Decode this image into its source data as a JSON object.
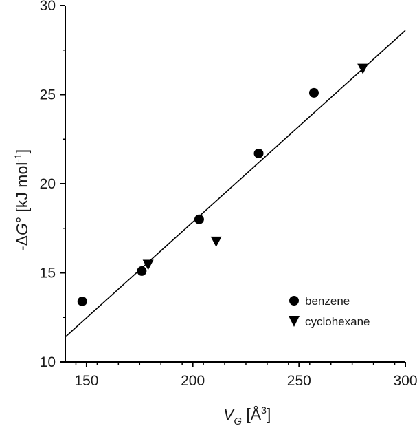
{
  "chart_data": {
    "type": "scatter",
    "xlabel": {
      "main": "V",
      "sub": "G",
      "unit_open": " [Å",
      "unit_sup": "3",
      "unit_close": "]"
    },
    "ylabel": {
      "prefix": "-Δ",
      "var": "G",
      "suffix": "° [kJ mol",
      "sup": "-1",
      "close": "]"
    },
    "xlim": [
      140,
      300
    ],
    "ylim": [
      10,
      30
    ],
    "xticks": [
      150,
      200,
      250,
      300
    ],
    "yticks": [
      10,
      15,
      20,
      25,
      30
    ],
    "xtick_labels": [
      "150",
      "200",
      "250",
      "300"
    ],
    "ytick_labels": [
      "10",
      "15",
      "20",
      "25",
      "30"
    ],
    "series": [
      {
        "name": "benzene",
        "marker": "circle",
        "x": [
          148,
          176,
          203,
          231,
          257
        ],
        "y": [
          13.4,
          15.1,
          18.0,
          21.7,
          25.1
        ]
      },
      {
        "name": "cyclohexane",
        "marker": "triangle-down",
        "x": [
          179,
          211,
          280
        ],
        "y": [
          15.5,
          16.8,
          26.5
        ]
      }
    ],
    "fit_line": {
      "x": [
        140,
        300
      ],
      "y": [
        11.4,
        28.6
      ]
    },
    "legend_position": "bottom-right",
    "colors": {
      "marker": "#000000",
      "line": "#000000",
      "axis": "#000000"
    }
  }
}
